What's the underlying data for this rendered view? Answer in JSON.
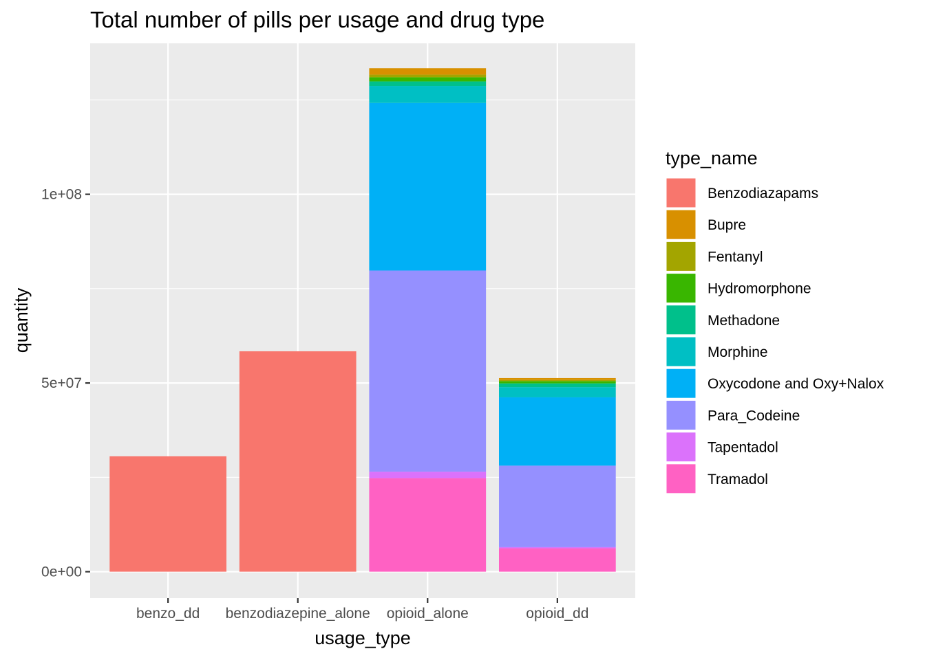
{
  "chart_data": {
    "type": "bar",
    "stacked": true,
    "title": "Total number of pills per usage and drug type",
    "xlabel": "usage_type",
    "ylabel": "quantity",
    "categories": [
      "benzo_dd",
      "benzodiazepine_alone",
      "opioid_alone",
      "opioid_dd"
    ],
    "y_ticks": [
      {
        "value": 0,
        "label": "0e+00"
      },
      {
        "value": 50000000,
        "label": "5e+07"
      },
      {
        "value": 100000000,
        "label": "1e+08"
      }
    ],
    "ylim": [
      -7000000,
      140000000
    ],
    "grid": true,
    "legend": {
      "title": "type_name",
      "position": "right"
    },
    "series": [
      {
        "name": "Tramadol",
        "color": "#FF61C3",
        "values": [
          0,
          0,
          24800000,
          6200000
        ]
      },
      {
        "name": "Tapentadol",
        "color": "#DB72FB",
        "values": [
          0,
          0,
          1700000,
          300000
        ]
      },
      {
        "name": "Para_Codeine",
        "color": "#9590FF",
        "values": [
          0,
          0,
          53300000,
          21600000
        ]
      },
      {
        "name": "Oxycodone and Oxy+Nalox",
        "color": "#00B0F6",
        "values": [
          0,
          0,
          44400000,
          18100000
        ]
      },
      {
        "name": "Morphine",
        "color": "#00BFC4",
        "values": [
          0,
          0,
          4500000,
          2700000
        ]
      },
      {
        "name": "Methadone",
        "color": "#00C08B",
        "values": [
          0,
          0,
          1200000,
          1000000
        ]
      },
      {
        "name": "Hydromorphone",
        "color": "#39B600",
        "values": [
          0,
          0,
          1100000,
          600000
        ]
      },
      {
        "name": "Fentanyl",
        "color": "#A3A500",
        "values": [
          0,
          0,
          700000,
          300000
        ]
      },
      {
        "name": "Bupre",
        "color": "#D89000",
        "values": [
          0,
          0,
          1700000,
          500000
        ]
      },
      {
        "name": "Benzodiazapams",
        "color": "#F8766D",
        "values": [
          30600000,
          58400000,
          0,
          0
        ]
      }
    ]
  }
}
